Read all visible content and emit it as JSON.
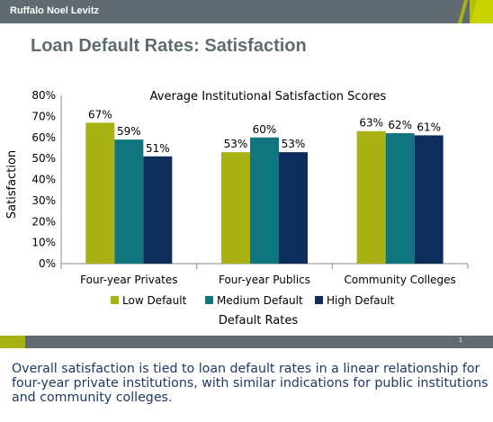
{
  "header": {
    "brand": "Ruffalo Noel Levitz"
  },
  "slide": {
    "title": "Loan Default Rates: Satisfaction",
    "page_number": "1"
  },
  "caption": "Overall satisfaction is tied to loan default rates in a linear relationship for four-year private institutions, with similar indications for public institutions and community colleges.",
  "colors": {
    "accent": "#a9b214",
    "bar_gray": "#5f6b70"
  },
  "chart_data": {
    "type": "bar",
    "title": "Average Institutional Satisfaction Scores",
    "xlabel": "Default Rates",
    "ylabel": "Satisfaction",
    "ylim": [
      0,
      80
    ],
    "yticks": [
      "0%",
      "10%",
      "20%",
      "30%",
      "40%",
      "50%",
      "60%",
      "70%",
      "80%"
    ],
    "categories": [
      "Four-year Privates",
      "Four-year Publics",
      "Community Colleges"
    ],
    "series": [
      {
        "name": "Low Default",
        "color": "#a9b214",
        "values": [
          67,
          53,
          63
        ],
        "labels": [
          "67%",
          "53%",
          "63%"
        ]
      },
      {
        "name": "Medium Default",
        "color": "#10757f",
        "values": [
          59,
          60,
          62
        ],
        "labels": [
          "59%",
          "60%",
          "62%"
        ]
      },
      {
        "name": "High Default",
        "color": "#0f2d5a",
        "values": [
          51,
          53,
          61
        ],
        "labels": [
          "51%",
          "53%",
          "61%"
        ]
      }
    ],
    "legend_position": "bottom",
    "grid": false
  }
}
